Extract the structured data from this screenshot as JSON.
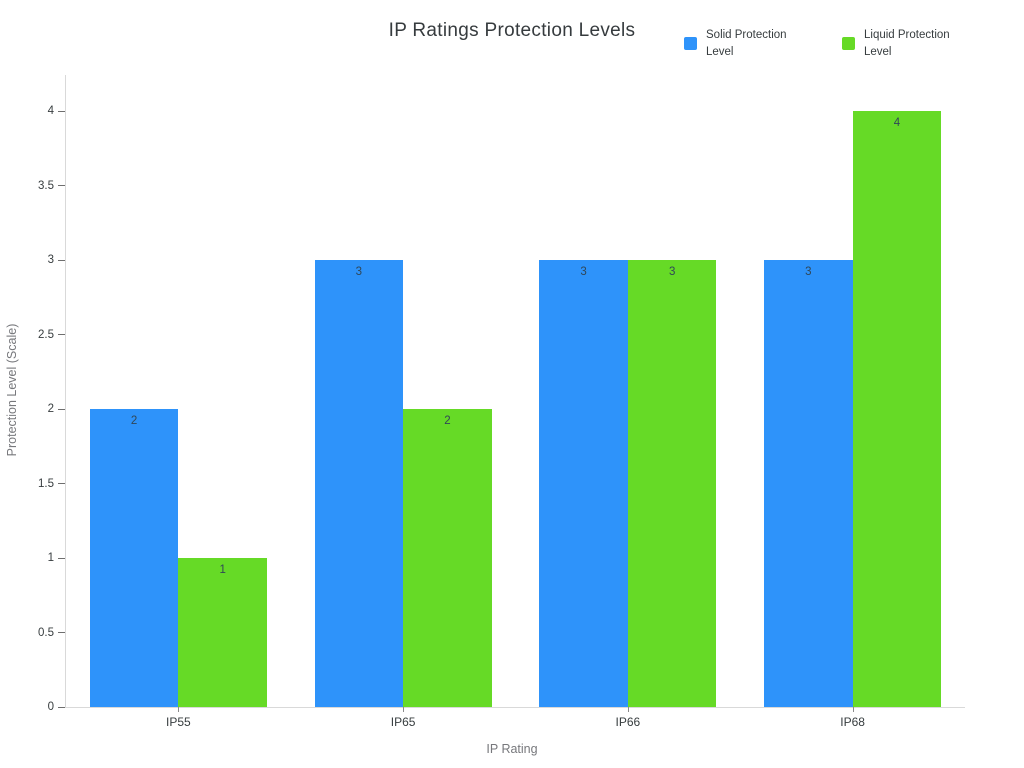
{
  "chart_data": {
    "type": "bar",
    "title": "IP Ratings Protection Levels",
    "categories": [
      "IP55",
      "IP65",
      "IP66",
      "IP68"
    ],
    "series": [
      {
        "name": "Solid Protection Level",
        "color": "#2E93FA",
        "values": [
          2,
          3,
          3,
          3
        ]
      },
      {
        "name": "Liquid Protection Level",
        "color": "#66DA26",
        "values": [
          1,
          2,
          3,
          4
        ]
      }
    ],
    "xlabel": "IP Rating",
    "ylabel": "Protection Level (Scale)",
    "ylim": [
      0,
      4
    ],
    "yticks": [
      "0",
      "0.5",
      "1",
      "1.5",
      "2",
      "2.5",
      "3",
      "3.5",
      "4"
    ],
    "grid": false,
    "legend_position": "top-right",
    "data_labels": true
  },
  "legend": {
    "items": [
      {
        "label": "Solid Protection Level",
        "color": "#2E93FA"
      },
      {
        "label": "Liquid Protection Level",
        "color": "#66DA26"
      }
    ]
  },
  "colors": {
    "background": "#ffffff",
    "axis_line": "#d9d9d9",
    "tick_label": "#373d3f",
    "axis_title": "#77787c",
    "data_label": "#304758",
    "title": "#363b3e"
  }
}
